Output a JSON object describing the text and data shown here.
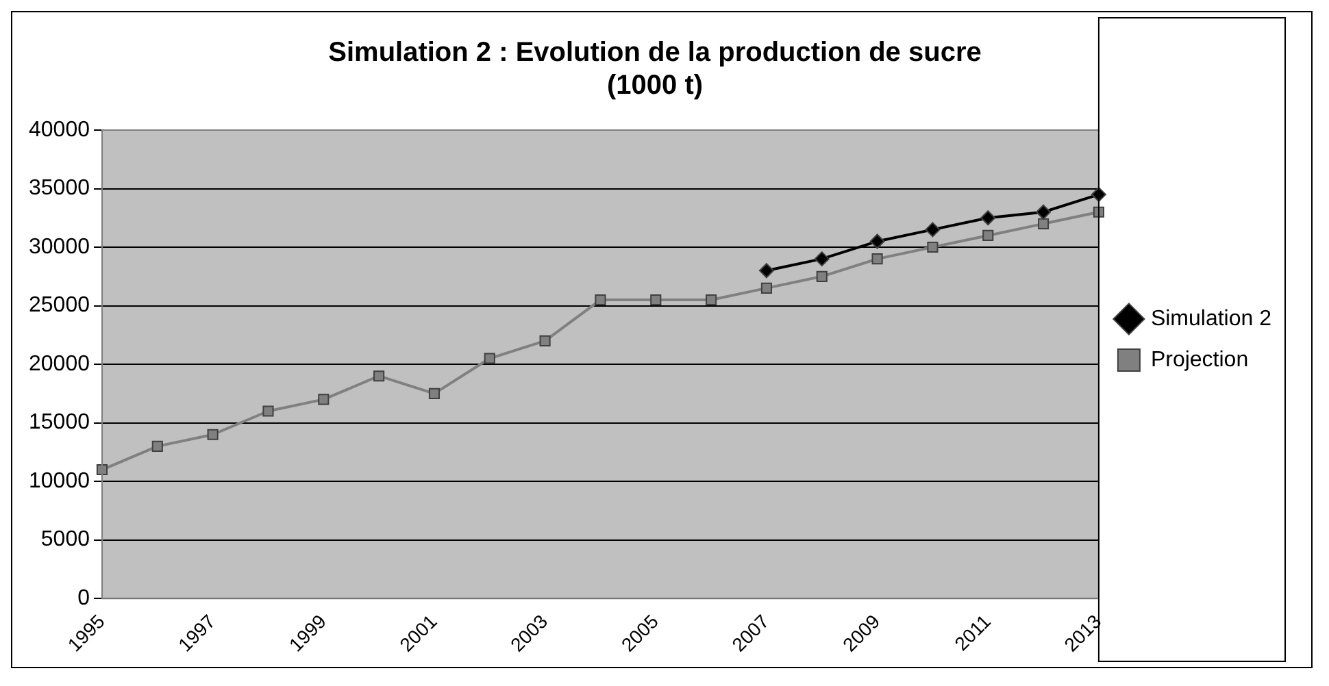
{
  "chart_data": {
    "type": "line",
    "title": [
      "Simulation 2 : Evolution de la production de sucre",
      "(1000 t)"
    ],
    "categories": [
      "1995",
      null,
      "1997",
      null,
      "1999",
      null,
      "2001",
      null,
      "2003",
      null,
      "2005",
      null,
      "2007",
      null,
      "2009",
      null,
      "2011",
      null,
      "2013"
    ],
    "series": [
      {
        "name": "Simulation 2",
        "color": "#000000",
        "marker": "diamond",
        "values": [
          null,
          null,
          null,
          null,
          null,
          null,
          null,
          null,
          null,
          null,
          null,
          null,
          28000,
          29000,
          30500,
          31500,
          32500,
          33000,
          34500
        ]
      },
      {
        "name": "Projection",
        "color": "#808080",
        "marker": "square",
        "values": [
          11000,
          13000,
          14000,
          16000,
          17000,
          19000,
          17500,
          20500,
          22000,
          25500,
          25500,
          25500,
          26500,
          27500,
          29000,
          30000,
          31000,
          32000,
          33000
        ]
      }
    ],
    "ylim": [
      0,
      40000
    ],
    "yticks": [
      0,
      5000,
      10000,
      15000,
      20000,
      25000,
      30000,
      35000,
      40000
    ],
    "grid": "y",
    "legend": "right"
  }
}
